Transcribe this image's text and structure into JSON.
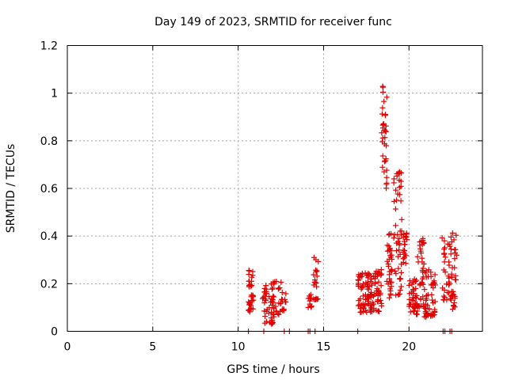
{
  "chart_data": {
    "type": "scatter",
    "title": "Day 149 of 2023, SRMTID for receiver func",
    "xlabel": "GPS time / hours",
    "ylabel": "SRMTID / TECUs",
    "xlim": [
      0,
      24.3
    ],
    "ylim": [
      0,
      1.2
    ],
    "xticks": [
      0,
      5,
      10,
      15,
      20
    ],
    "xtick_labels": [
      "0",
      "5",
      "10",
      "15",
      "20"
    ],
    "yticks": [
      0,
      0.2,
      0.4,
      0.6,
      0.8,
      1.0,
      1.2
    ],
    "ytick_labels": [
      "0",
      "0.2",
      "0.4",
      "0.6",
      "0.8",
      "1",
      "1.2"
    ],
    "grid": true,
    "marker": "+",
    "color": "#e00000",
    "clusters": [
      {
        "x": [
          10.6,
          10.9
        ],
        "y": [
          0.08,
          0.26
        ],
        "n": 35
      },
      {
        "x": [
          11.4,
          12.1
        ],
        "y": [
          0.03,
          0.2
        ],
        "n": 40
      },
      {
        "x": [
          11.9,
          12.8
        ],
        "y": [
          0.07,
          0.21
        ],
        "n": 40
      },
      {
        "x": [
          14.1,
          14.3
        ],
        "y": [
          0.09,
          0.16
        ],
        "n": 12
      },
      {
        "x": [
          14.4,
          14.7
        ],
        "y": [
          0.13,
          0.31
        ],
        "n": 20
      },
      {
        "x": [
          17.0,
          18.4
        ],
        "y": [
          0.08,
          0.26
        ],
        "n": 120
      },
      {
        "x": [
          18.4,
          18.7
        ],
        "y": [
          0.6,
          1.04
        ],
        "n": 35
      },
      {
        "x": [
          18.7,
          19.0
        ],
        "y": [
          0.14,
          0.42
        ],
        "n": 35
      },
      {
        "x": [
          19.1,
          19.6
        ],
        "y": [
          0.15,
          0.67
        ],
        "n": 50
      },
      {
        "x": [
          19.6,
          19.9
        ],
        "y": [
          0.28,
          0.42
        ],
        "n": 20
      },
      {
        "x": [
          20.0,
          20.5
        ],
        "y": [
          0.07,
          0.22
        ],
        "n": 40
      },
      {
        "x": [
          20.5,
          20.9
        ],
        "y": [
          0.1,
          0.4
        ],
        "n": 35
      },
      {
        "x": [
          20.9,
          21.6
        ],
        "y": [
          0.06,
          0.26
        ],
        "n": 50
      },
      {
        "x": [
          21.9,
          22.4
        ],
        "y": [
          0.13,
          0.4
        ],
        "n": 30
      },
      {
        "x": [
          22.4,
          22.8
        ],
        "y": [
          0.09,
          0.42
        ],
        "n": 35
      }
    ],
    "zero_points_x": [
      10.6,
      11.5,
      12.7,
      13.0,
      14.1,
      14.2,
      14.5,
      17.0,
      22.0,
      22.1,
      22.4,
      22.5
    ]
  }
}
